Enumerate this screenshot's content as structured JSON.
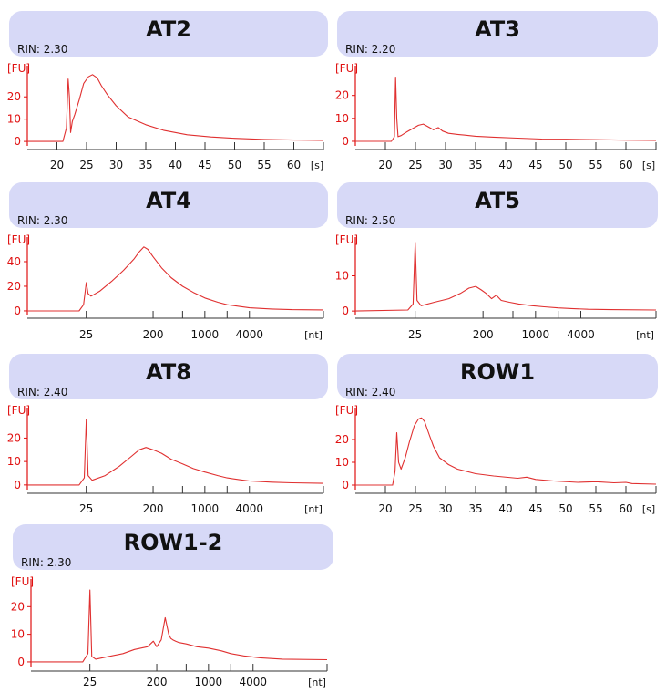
{
  "colors": {
    "trace": "#e03030",
    "axis_red": "#e01010",
    "header_fill": "#d7d9f7",
    "text": "#111111"
  },
  "chart_data": [
    {
      "type": "line",
      "title": "AT2",
      "subtitle": "RIN: 2.30",
      "ylabel": "[FU]",
      "xlabel": "[s]",
      "x_scale": "linear",
      "xlim": [
        15,
        65
      ],
      "ylim": [
        -2,
        34
      ],
      "yticks": [
        0,
        10,
        20
      ],
      "xticks": [
        20,
        25,
        30,
        35,
        40,
        45,
        50,
        55,
        60
      ],
      "xtick_labels": [
        "20",
        "25",
        "30",
        "35",
        "40",
        "45",
        "50",
        "55",
        "60"
      ],
      "series": [
        {
          "x": [
            15,
            21,
            21.6,
            21.9,
            22.1,
            22.3,
            22.6,
            23,
            23.8,
            24.5,
            25.3,
            26,
            26.8,
            27.5,
            28.5,
            30,
            32,
            35,
            38,
            42,
            46,
            50,
            55,
            60,
            65
          ],
          "y": [
            0,
            0,
            6,
            28,
            20,
            4,
            9,
            12,
            19,
            26,
            29,
            30,
            28.5,
            25,
            21,
            16,
            11,
            7.5,
            5,
            3,
            2,
            1.4,
            0.9,
            0.6,
            0.5
          ]
        }
      ]
    },
    {
      "type": "line",
      "title": "AT3",
      "subtitle": "RIN: 2.20",
      "ylabel": "[FU]",
      "xlabel": "[s]",
      "x_scale": "linear",
      "xlim": [
        15,
        65
      ],
      "ylim": [
        -2,
        33
      ],
      "yticks": [
        0,
        10,
        20
      ],
      "xticks": [
        20,
        25,
        30,
        35,
        40,
        45,
        50,
        55,
        60
      ],
      "xtick_labels": [
        "20",
        "25",
        "30",
        "35",
        "40",
        "45",
        "50",
        "55",
        "60"
      ],
      "series": [
        {
          "x": [
            15,
            21,
            21.5,
            21.7,
            21.9,
            22.1,
            22.6,
            23.5,
            24.5,
            25.5,
            26.3,
            27,
            28,
            28.8,
            29.5,
            30.5,
            32,
            35,
            38,
            42,
            46,
            50,
            55,
            60,
            65
          ],
          "y": [
            0,
            0,
            2,
            28,
            10,
            2,
            2.5,
            4,
            5.5,
            7,
            7.5,
            6.5,
            5,
            6,
            4.5,
            3.5,
            3,
            2.2,
            1.8,
            1.4,
            1,
            0.9,
            0.7,
            0.5,
            0.4
          ]
        }
      ]
    },
    {
      "type": "line",
      "title": "AT4",
      "subtitle": "RIN: 2.30",
      "ylabel": "[FU]",
      "xlabel": "[nt]",
      "x_scale": "log",
      "xlim": [
        4,
        40000
      ],
      "ylim": [
        -3,
        60
      ],
      "yticks": [
        0,
        20,
        40
      ],
      "xticks": [
        25,
        200,
        1000,
        4000
      ],
      "xtick_labels": [
        "25",
        "200",
        "1000",
        "4000"
      ],
      "minor_xticks": [
        500,
        2000
      ],
      "series": [
        {
          "x": [
            4,
            20,
            23,
            25,
            26.5,
            29,
            38,
            55,
            80,
            110,
            130,
            150,
            170,
            200,
            260,
            350,
            500,
            700,
            1000,
            1500,
            2000,
            3000,
            4000,
            8000,
            15000,
            40000
          ],
          "y": [
            0,
            0,
            5,
            23,
            14,
            12,
            16,
            24,
            33,
            42,
            48,
            52,
            50,
            44,
            35,
            27,
            20,
            15,
            10.5,
            7,
            5,
            3.5,
            2.5,
            1.5,
            1,
            0.8
          ]
        }
      ]
    },
    {
      "type": "line",
      "title": "AT5",
      "subtitle": "RIN: 2.50",
      "ylabel": "[FU]",
      "xlabel": "[nt]",
      "x_scale": "log",
      "xlim": [
        4,
        40000
      ],
      "ylim": [
        -1,
        21
      ],
      "yticks": [
        0,
        10
      ],
      "xticks": [
        25,
        200,
        1000,
        4000
      ],
      "xtick_labels": [
        "25",
        "200",
        "1000",
        "4000"
      ],
      "minor_xticks": [
        500,
        2000
      ],
      "series": [
        {
          "x": [
            4,
            20,
            23.5,
            25,
            26.5,
            30,
            45,
            70,
            100,
            130,
            160,
            190,
            220,
            260,
            300,
            350,
            450,
            600,
            900,
            1300,
            2000,
            3000,
            5000,
            10000,
            40000
          ],
          "y": [
            0,
            0.3,
            2,
            19.5,
            3,
            1.5,
            2.5,
            3.5,
            5,
            6.5,
            7,
            6,
            5,
            3.5,
            4.5,
            3,
            2.5,
            2,
            1.5,
            1.2,
            0.9,
            0.7,
            0.5,
            0.4,
            0.3
          ]
        }
      ]
    },
    {
      "type": "line",
      "title": "AT8",
      "subtitle": "RIN: 2.40",
      "ylabel": "[FU]",
      "xlabel": "[nt]",
      "x_scale": "log",
      "xlim": [
        4,
        40000
      ],
      "ylim": [
        -2,
        33
      ],
      "yticks": [
        0,
        10,
        20
      ],
      "xticks": [
        25,
        200,
        1000,
        4000
      ],
      "xtick_labels": [
        "25",
        "200",
        "1000",
        "4000"
      ],
      "minor_xticks": [
        500,
        2000
      ],
      "series": [
        {
          "x": [
            4,
            20,
            23.5,
            25,
            26.5,
            30,
            45,
            70,
            100,
            130,
            160,
            200,
            260,
            350,
            500,
            700,
            1000,
            1500,
            2000,
            3000,
            4000,
            8000,
            15000,
            40000
          ],
          "y": [
            0,
            0,
            3,
            28,
            4,
            2,
            4,
            8,
            12,
            15,
            16,
            15,
            13.5,
            11,
            9,
            7,
            5.5,
            4,
            3,
            2.2,
            1.7,
            1.2,
            0.9,
            0.7
          ]
        }
      ]
    },
    {
      "type": "line",
      "title": "ROW1",
      "subtitle": "RIN: 2.40",
      "ylabel": "[FU]",
      "xlabel": "[s]",
      "x_scale": "linear",
      "xlim": [
        15,
        65
      ],
      "ylim": [
        -2,
        34
      ],
      "yticks": [
        0,
        10,
        20
      ],
      "xticks": [
        20,
        25,
        30,
        35,
        40,
        45,
        50,
        55,
        60
      ],
      "xtick_labels": [
        "20",
        "25",
        "30",
        "35",
        "40",
        "45",
        "50",
        "55",
        "60"
      ],
      "series": [
        {
          "x": [
            15,
            21.2,
            21.6,
            21.9,
            22.2,
            22.6,
            23.3,
            24,
            24.8,
            25.5,
            26,
            26.5,
            27.3,
            28,
            29,
            30.5,
            32,
            35,
            38,
            42,
            43.5,
            45,
            48,
            52,
            55,
            58,
            60,
            61,
            65
          ],
          "y": [
            0,
            0,
            6,
            23,
            10,
            7,
            12,
            19,
            26,
            29,
            29.5,
            28,
            22,
            17,
            12,
            9,
            7,
            5,
            4,
            3,
            3.5,
            2.5,
            1.8,
            1.2,
            1.5,
            1,
            1.2,
            0.7,
            0.4
          ]
        }
      ]
    },
    {
      "type": "line",
      "title": "ROW1-2",
      "subtitle": "RIN: 2.30",
      "ylabel": "[FU]",
      "xlabel": "[nt]",
      "x_scale": "log",
      "xlim": [
        4,
        40000
      ],
      "ylim": [
        -2,
        30
      ],
      "yticks": [
        0,
        10,
        20
      ],
      "xticks": [
        25,
        200,
        1000,
        4000
      ],
      "xtick_labels": [
        "25",
        "200",
        "1000",
        "4000"
      ],
      "minor_xticks": [
        500,
        2000
      ],
      "series": [
        {
          "x": [
            4,
            20,
            23.5,
            25,
            26.5,
            30,
            45,
            70,
            100,
            150,
            180,
            200,
            230,
            260,
            290,
            310,
            330,
            360,
            400,
            500,
            700,
            1000,
            1500,
            2000,
            3000,
            5000,
            10000,
            40000
          ],
          "y": [
            0,
            0,
            3,
            26,
            2,
            1,
            2,
            3,
            4.5,
            5.5,
            7.5,
            5.5,
            8,
            16,
            10,
            8.5,
            8,
            7.5,
            7,
            6.5,
            5.5,
            5,
            4,
            3,
            2.2,
            1.5,
            1,
            0.8
          ]
        }
      ]
    }
  ]
}
